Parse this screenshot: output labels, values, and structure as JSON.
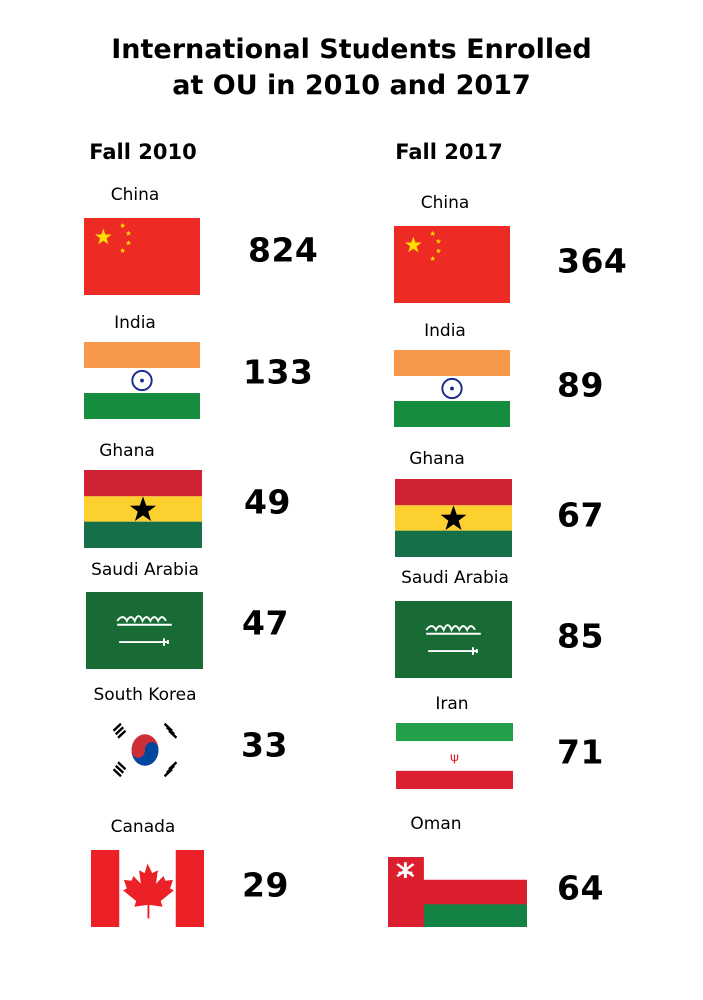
{
  "title_line1": "International Students Enrolled",
  "title_line2": "at OU in 2010 and 2017",
  "columns": [
    {
      "heading": "Fall 2010",
      "items": [
        {
          "country": "China",
          "value": "824",
          "flag": "china-flag"
        },
        {
          "country": "India",
          "value": "133",
          "flag": "india-flag"
        },
        {
          "country": "Ghana",
          "value": "49",
          "flag": "ghana-flag"
        },
        {
          "country": "Saudi Arabia",
          "value": "47",
          "flag": "saudi-arabia-flag"
        },
        {
          "country": "South Korea",
          "value": "33",
          "flag": "south-korea-flag"
        },
        {
          "country": "Canada",
          "value": "29",
          "flag": "canada-flag"
        }
      ]
    },
    {
      "heading": "Fall 2017",
      "items": [
        {
          "country": "China",
          "value": "364",
          "flag": "china-flag"
        },
        {
          "country": "India",
          "value": "89",
          "flag": "india-flag"
        },
        {
          "country": "Ghana",
          "value": "67",
          "flag": "ghana-flag"
        },
        {
          "country": "Saudi Arabia",
          "value": "85",
          "flag": "saudi-arabia-flag"
        },
        {
          "country": "Iran",
          "value": "71",
          "flag": "iran-flag"
        },
        {
          "country": "Oman",
          "value": "64",
          "flag": "oman-flag"
        }
      ]
    }
  ]
}
